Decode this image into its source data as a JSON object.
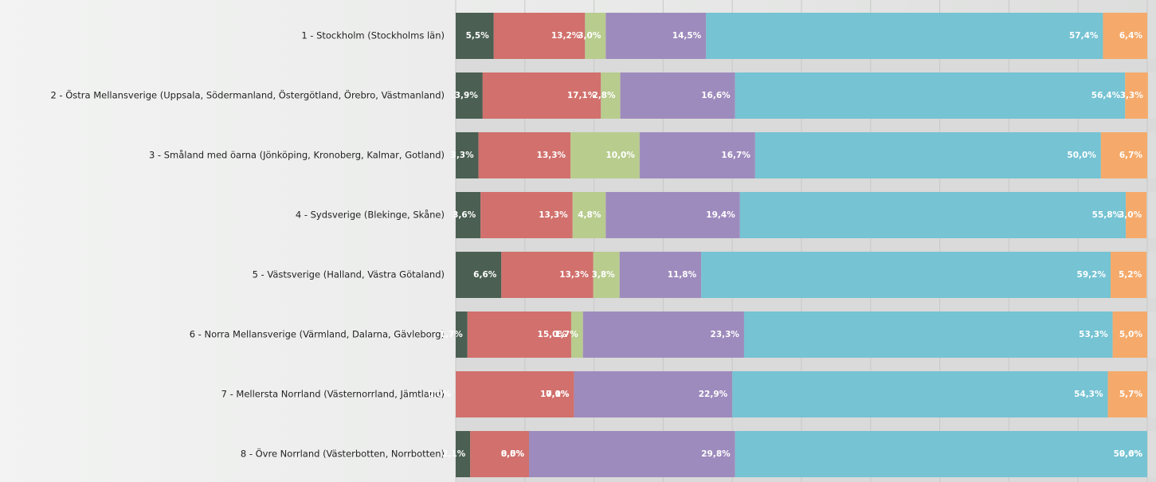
{
  "chart_data": {
    "type": "stacked-bar-horizontal",
    "categories": [
      "1 - Stockholm (Stockholms län)",
      "2 - Östra Mellansverige (Uppsala, Södermanland, Östergötland, Örebro, Västmanland)",
      "3 - Småland med öarna (Jönköping, Kronoberg, Kalmar, Gotland)",
      "4 - Sydsverige (Blekinge, Skåne)",
      "5 - Västsverige (Halland, Västra Götaland)",
      "6 - Norra Mellansverige (Värmland, Dalarna, Gävleborg)",
      "7 - Mellersta Norrland (Västernorrland, Jämtland)",
      "8 - Övre Norrland (Västerbotten, Norrbotten)"
    ],
    "series": [
      {
        "color": "#4b5f52",
        "values": [
          5.5,
          3.9,
          3.3,
          3.6,
          6.6,
          1.7,
          0,
          2.1
        ],
        "value_labels": [
          "5,5%",
          "3,9%",
          "3,3%",
          "3,6%",
          "6,6%",
          "1,7%",
          "0,0%",
          "2,1%"
        ]
      },
      {
        "color": "#d1706c",
        "values": [
          13.2,
          17.1,
          13.3,
          13.3,
          13.3,
          15.0,
          17.1,
          8.5
        ],
        "value_labels": [
          "13,2%",
          "17,1%",
          "13,3%",
          "13,3%",
          "13,3%",
          "15,0%",
          "17,1%",
          "8,5%"
        ]
      },
      {
        "color": "#b8cc8e",
        "values": [
          3.0,
          2.8,
          10.0,
          4.8,
          3.8,
          1.7,
          0.0,
          0.0
        ],
        "value_labels": [
          "3,0%",
          "2,8%",
          "10,0%",
          "4,8%",
          "3,8%",
          "1,7%",
          "0,0%",
          "0,0%"
        ]
      },
      {
        "color": "#9e8bbd",
        "values": [
          14.5,
          16.6,
          16.7,
          19.4,
          11.8,
          23.3,
          22.9,
          29.8
        ],
        "value_labels": [
          "14,5%",
          "16,6%",
          "16,7%",
          "19,4%",
          "11,8%",
          "23,3%",
          "22,9%",
          "29,8%"
        ]
      },
      {
        "color": "#75c3d3",
        "values": [
          57.4,
          56.4,
          50.0,
          55.8,
          59.2,
          53.3,
          54.3,
          59.6
        ],
        "value_labels": [
          "57,4%",
          "56,4%",
          "50,0%",
          "55,8%",
          "59,2%",
          "53,3%",
          "54,3%",
          "59,6%"
        ]
      },
      {
        "color": "#f5aa6b",
        "values": [
          6.4,
          3.3,
          6.7,
          3.0,
          5.2,
          5.0,
          5.7,
          0.0
        ],
        "value_labels": [
          "6,4%",
          "3,3%",
          "6,7%",
          "3,0%",
          "5,2%",
          "5,0%",
          "5,7%",
          "0,0%"
        ]
      }
    ],
    "xlim": [
      0,
      100
    ],
    "xticks": [
      0,
      10,
      20,
      30,
      40,
      50,
      60,
      70,
      80,
      90,
      100
    ],
    "grid": true
  }
}
